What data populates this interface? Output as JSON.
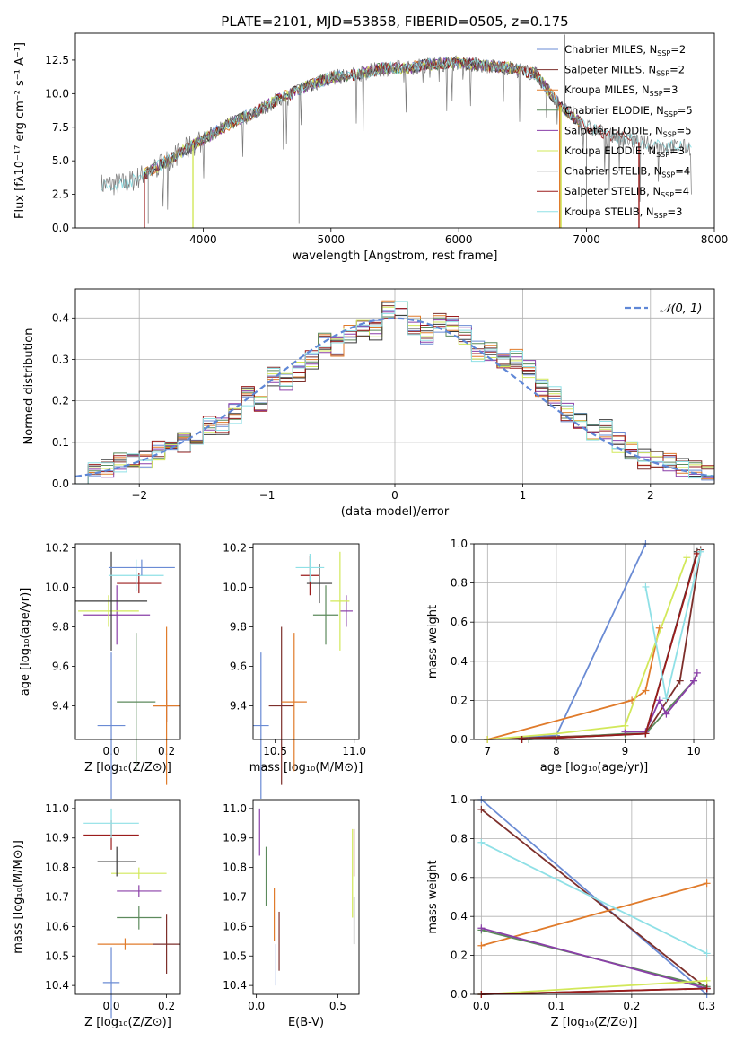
{
  "chart_data": [
    {
      "type": "line",
      "panel": "spectrum",
      "title": "PLATE=2101, MJD=53858, FIBERID=0505, z=0.175",
      "xlabel": "wavelength [Angstrom, rest frame]",
      "ylabel": "Flux [fλ10⁻¹⁷ erg cm⁻² s⁻¹ A⁻¹]",
      "xlim": [
        3000,
        8000
      ],
      "ylim": [
        0,
        14.5
      ],
      "xticks": [
        4000,
        5000,
        6000,
        7000,
        8000
      ],
      "yticks": [
        0.0,
        2.5,
        5.0,
        7.5,
        10.0,
        12.5
      ],
      "grid": false,
      "legend_position": "right",
      "data_series": {
        "name": "",
        "x": [
          3200,
          3400,
          3600,
          3800,
          4000,
          4200,
          4400,
          4600,
          4800,
          5000,
          5200,
          5400,
          5600,
          5800,
          6000,
          6200,
          6400,
          6600,
          6800,
          7000,
          7200,
          7400,
          7600,
          7800
        ],
        "y": [
          3.2,
          3.3,
          4.3,
          5.5,
          6.6,
          7.7,
          8.6,
          9.6,
          10.5,
          11.2,
          11.4,
          11.9,
          11.9,
          12.2,
          12.3,
          12.1,
          11.9,
          11.5,
          9.0,
          7.5,
          6.9,
          6.4,
          6.1,
          6.0
        ]
      },
      "series": [
        {
          "name": "Chabrier MILES, N$_{SSP}$=2",
          "label": "Chabrier MILES, N",
          "sub": "SSP",
          "n": "=2",
          "color": "#6a8bd4"
        },
        {
          "name": "Salpeter MILES, N$_{SSP}$=2",
          "label": "Salpeter MILES, N",
          "sub": "SSP",
          "n": "=2",
          "color": "#7d2f2b"
        },
        {
          "name": "Kroupa MILES, N$_{SSP}$=3",
          "label": "Kroupa MILES, N",
          "sub": "SSP",
          "n": "=3",
          "color": "#e07b2b"
        },
        {
          "name": "Chabrier ELODIE, N$_{SSP}$=5",
          "label": "Chabrier ELODIE, N",
          "sub": "SSP",
          "n": "=5",
          "color": "#5c8a5c"
        },
        {
          "name": "Salpeter ELODIE, N$_{SSP}$=5",
          "label": "Salpeter ELODIE, N",
          "sub": "SSP",
          "n": "=5",
          "color": "#8a3fa8"
        },
        {
          "name": "Kroupa ELODIE, N$_{SSP}$=3",
          "label": "Kroupa ELODIE, N",
          "sub": "SSP",
          "n": "=3",
          "color": "#d2e85a"
        },
        {
          "name": "Chabrier STELIB, N$_{SSP}$=4",
          "label": "Chabrier STELIB, N",
          "sub": "SSP",
          "n": "=4",
          "color": "#3a3a3a"
        },
        {
          "name": "Salpeter STELIB, N$_{SSP}$=4",
          "label": "Salpeter STELIB, N",
          "sub": "SSP",
          "n": "=4",
          "color": "#9b1c1c"
        },
        {
          "name": "Kroupa STELIB, N$_{SSP}$=3",
          "label": "Kroupa STELIB, N",
          "sub": "SSP",
          "n": "=3",
          "color": "#8fe0e6"
        }
      ]
    },
    {
      "type": "histogram",
      "panel": "residuals",
      "xlabel": "(data-model)/error",
      "ylabel": "Normed distribution",
      "xlim": [
        -2.5,
        2.5
      ],
      "ylim": [
        0,
        0.47
      ],
      "xticks": [
        -2,
        -1,
        0,
        1,
        2
      ],
      "yticks": [
        0.0,
        0.1,
        0.2,
        0.3,
        0.4
      ],
      "grid": true,
      "legend_position": "top-right",
      "legend": "𝒩(0, 1)",
      "bin_width": 0.1,
      "reference_curve": "normal(0,1)",
      "bins": {
        "x": [
          -2.45,
          -2.35,
          -2.25,
          -2.15,
          -2.05,
          -1.95,
          -1.85,
          -1.75,
          -1.65,
          -1.55,
          -1.45,
          -1.35,
          -1.25,
          -1.15,
          -1.05,
          -0.95,
          -0.85,
          -0.75,
          -0.65,
          -0.55,
          -0.45,
          -0.35,
          -0.25,
          -0.15,
          -0.05,
          0.05,
          0.15,
          0.25,
          0.35,
          0.45,
          0.55,
          0.65,
          0.75,
          0.85,
          0.95,
          1.05,
          1.15,
          1.25,
          1.35,
          1.45,
          1.55,
          1.65,
          1.75,
          1.85,
          1.95,
          2.05,
          2.15,
          2.25,
          2.35,
          2.45
        ],
        "y": [
          0.02,
          0.03,
          0.04,
          0.05,
          0.05,
          0.06,
          0.08,
          0.08,
          0.1,
          0.11,
          0.14,
          0.14,
          0.17,
          0.21,
          0.2,
          0.26,
          0.25,
          0.27,
          0.3,
          0.34,
          0.33,
          0.36,
          0.38,
          0.37,
          0.42,
          0.42,
          0.38,
          0.36,
          0.39,
          0.38,
          0.36,
          0.32,
          0.32,
          0.3,
          0.3,
          0.28,
          0.23,
          0.21,
          0.17,
          0.15,
          0.12,
          0.13,
          0.1,
          0.08,
          0.06,
          0.06,
          0.05,
          0.04,
          0.03,
          0.03
        ]
      }
    },
    {
      "type": "scatter",
      "panel": "age-vs-Z",
      "xlabel": "Z [log₁₀(Z/Z⊙)]",
      "ylabel": "age  [log₁₀(age/yr)]",
      "xlim": [
        -0.13,
        0.25
      ],
      "ylim": [
        9.23,
        10.22
      ],
      "xticks": [
        0.0,
        0.2
      ],
      "yticks": [
        9.4,
        9.6,
        9.8,
        10.0,
        10.2
      ],
      "points": [
        {
          "x": 0.0,
          "y": 9.3,
          "xerr": 0.05,
          "yerr": 0.37
        },
        {
          "x": 0.2,
          "y": 9.4,
          "xerr": 0.05,
          "yerr": 0.08
        },
        {
          "x": 0.2,
          "y": 9.4,
          "xerr": 0.05,
          "yerr": 0.4
        },
        {
          "x": 0.09,
          "y": 9.42,
          "xerr": 0.07,
          "yerr": 0.35
        },
        {
          "x": 0.02,
          "y": 9.86,
          "xerr": 0.12,
          "yerr": 0.15
        },
        {
          "x": -0.01,
          "y": 9.88,
          "xerr": 0.11,
          "yerr": 0.08
        },
        {
          "x": 0.0,
          "y": 9.93,
          "xerr": 0.13,
          "yerr": 0.25
        },
        {
          "x": 0.1,
          "y": 10.02,
          "xerr": 0.08,
          "yerr": 0.05
        },
        {
          "x": 0.09,
          "y": 10.06,
          "xerr": 0.1,
          "yerr": 0.08
        },
        {
          "x": 0.11,
          "y": 10.1,
          "xerr": 0.12,
          "yerr": 0.04
        }
      ]
    },
    {
      "type": "scatter",
      "panel": "age-vs-mass",
      "xlabel": "mass [log₁₀(M/M⊙)]",
      "xlim": [
        10.36,
        11.03
      ],
      "ylim": [
        9.23,
        10.22
      ],
      "xticks": [
        10.5,
        11.0
      ],
      "yticks": [
        9.4,
        9.6,
        9.8,
        10.0,
        10.2
      ],
      "points": [
        {
          "x": 10.41,
          "y": 9.3,
          "xerr": 0.05,
          "yerr": 0.37
        },
        {
          "x": 10.54,
          "y": 9.4,
          "xerr": 0.08,
          "yerr": 0.4
        },
        {
          "x": 10.62,
          "y": 9.42,
          "xerr": 0.08,
          "yerr": 0.35
        },
        {
          "x": 10.82,
          "y": 9.86,
          "xerr": 0.08,
          "yerr": 0.15
        },
        {
          "x": 10.95,
          "y": 9.88,
          "xerr": 0.04,
          "yerr": 0.08
        },
        {
          "x": 10.91,
          "y": 9.93,
          "xerr": 0.06,
          "yerr": 0.25
        },
        {
          "x": 10.78,
          "y": 10.02,
          "xerr": 0.08,
          "yerr": 0.1
        },
        {
          "x": 10.72,
          "y": 10.06,
          "xerr": 0.06,
          "yerr": 0.1
        },
        {
          "x": 10.72,
          "y": 10.1,
          "xerr": 0.09,
          "yerr": 0.07
        }
      ]
    },
    {
      "type": "line",
      "panel": "weight-vs-age",
      "xlabel": "age  [log₁₀(age/yr)]",
      "ylabel": "mass weight",
      "xlim": [
        6.8,
        10.3
      ],
      "ylim": [
        0,
        1.0
      ],
      "xticks": [
        7,
        8,
        9,
        10
      ],
      "yticks": [
        0.0,
        0.2,
        0.4,
        0.6,
        0.8,
        1.0
      ],
      "grid": true,
      "series": [
        {
          "name": "",
          "x": [
            7.0,
            8.0,
            9.3
          ],
          "y": [
            0.0,
            0.02,
            1.0
          ]
        },
        {
          "name": "",
          "x": [
            7.0,
            9.3,
            9.8,
            10.1
          ],
          "y": [
            0.0,
            0.03,
            0.3,
            0.97
          ]
        },
        {
          "name": "",
          "x": [
            7.0,
            9.1,
            9.3,
            9.5
          ],
          "y": [
            0.0,
            0.2,
            0.25,
            0.57
          ]
        },
        {
          "name": "",
          "x": [
            7.6,
            9.0,
            9.3,
            10.0
          ],
          "y": [
            0.0,
            0.03,
            0.03,
            0.3
          ]
        },
        {
          "name": "",
          "x": [
            9.0,
            9.3,
            9.5,
            9.6,
            10.0,
            10.05
          ],
          "y": [
            0.04,
            0.04,
            0.2,
            0.13,
            0.3,
            0.34
          ]
        },
        {
          "name": "",
          "x": [
            7.0,
            8.0,
            9.0,
            9.9
          ],
          "y": [
            0.0,
            0.03,
            0.07,
            0.93
          ]
        },
        {
          "name": "",
          "x": [
            7.5,
            9.3,
            10.05
          ],
          "y": [
            0.0,
            0.03,
            0.96
          ]
        },
        {
          "name": "",
          "x": [
            7.5,
            9.3,
            10.05
          ],
          "y": [
            0.0,
            0.03,
            0.95
          ]
        },
        {
          "name": "",
          "x": [
            9.3,
            9.6,
            10.1
          ],
          "y": [
            0.78,
            0.21,
            0.96
          ]
        }
      ]
    },
    {
      "type": "scatter",
      "panel": "mass-vs-Z",
      "xlabel": "Z [log₁₀(Z/Z⊙)]",
      "ylabel": "mass [log₁₀(M/M⊙)]",
      "xlim": [
        -0.13,
        0.25
      ],
      "ylim": [
        10.37,
        11.03
      ],
      "xticks": [
        0.0,
        0.2
      ],
      "yticks": [
        10.4,
        10.5,
        10.6,
        10.7,
        10.8,
        10.9,
        11.0
      ],
      "points": [
        {
          "x": 0.0,
          "y": 10.41,
          "xerr": 0.03,
          "yerr": 0.12
        },
        {
          "x": 0.2,
          "y": 10.54,
          "xerr": 0.05,
          "yerr": 0.1
        },
        {
          "x": 0.05,
          "y": 10.54,
          "xerr": 0.1,
          "yerr": 0.02
        },
        {
          "x": 0.1,
          "y": 10.63,
          "xerr": 0.08,
          "yerr": 0.04
        },
        {
          "x": 0.1,
          "y": 10.72,
          "xerr": 0.08,
          "yerr": 0.02
        },
        {
          "x": 0.1,
          "y": 10.78,
          "xerr": 0.1,
          "yerr": 0.02
        },
        {
          "x": 0.02,
          "y": 10.82,
          "xerr": 0.07,
          "yerr": 0.05
        },
        {
          "x": 0.0,
          "y": 10.91,
          "xerr": 0.1,
          "yerr": 0.05
        },
        {
          "x": 0.0,
          "y": 10.95,
          "xerr": 0.1,
          "yerr": 0.05
        }
      ]
    },
    {
      "type": "scatter",
      "panel": "mass-vs-EBV",
      "xlabel": "E(B-V)",
      "xlim": [
        -0.02,
        0.63
      ],
      "ylim": [
        10.37,
        11.03
      ],
      "xticks": [
        0.0,
        0.5
      ],
      "yticks": [
        10.4,
        10.5,
        10.6,
        10.7,
        10.8,
        10.9,
        11.0
      ],
      "points": [
        {
          "x": 0.12,
          "y": 10.47,
          "yerr": 0.07
        },
        {
          "x": 0.14,
          "y": 10.55,
          "yerr": 0.1
        },
        {
          "x": 0.11,
          "y": 10.64,
          "yerr": 0.09
        },
        {
          "x": 0.06,
          "y": 10.77,
          "yerr": 0.1
        },
        {
          "x": 0.02,
          "y": 10.92,
          "yerr": 0.08
        },
        {
          "x": 0.59,
          "y": 10.78,
          "yerr": 0.15
        },
        {
          "x": 0.6,
          "y": 10.62,
          "yerr": 0.08
        },
        {
          "x": 0.6,
          "y": 10.85,
          "yerr": 0.08
        }
      ]
    },
    {
      "type": "line",
      "panel": "weight-vs-Z",
      "xlabel": "Z [log₁₀(Z/Z⊙)]",
      "ylabel": "mass weight",
      "xlim": [
        -0.01,
        0.31
      ],
      "ylim": [
        0,
        1.0
      ],
      "xticks": [
        0.0,
        0.1,
        0.2,
        0.3
      ],
      "yticks": [
        0.0,
        0.2,
        0.4,
        0.6,
        0.8,
        1.0
      ],
      "grid": true,
      "series": [
        {
          "name": "",
          "x": [
            0.0,
            0.3
          ],
          "y": [
            1.0,
            0.0
          ]
        },
        {
          "name": "",
          "x": [
            0.0,
            0.3
          ],
          "y": [
            0.95,
            0.03
          ]
        },
        {
          "name": "",
          "x": [
            0.0,
            0.3
          ],
          "y": [
            0.25,
            0.57
          ]
        },
        {
          "name": "",
          "x": [
            0.0,
            0.3
          ],
          "y": [
            0.33,
            0.04
          ]
        },
        {
          "name": "",
          "x": [
            0.0,
            0.3
          ],
          "y": [
            0.34,
            0.03
          ]
        },
        {
          "name": "",
          "x": [
            0.0,
            0.3
          ],
          "y": [
            0.0,
            0.07
          ]
        },
        {
          "name": "",
          "x": [
            0.0,
            0.3
          ],
          "y": [
            0.0,
            0.03
          ]
        },
        {
          "name": "",
          "x": [
            0.0,
            0.3
          ],
          "y": [
            0.0,
            0.03
          ]
        },
        {
          "name": "",
          "x": [
            0.0,
            0.3
          ],
          "y": [
            0.78,
            0.21
          ]
        }
      ]
    }
  ]
}
